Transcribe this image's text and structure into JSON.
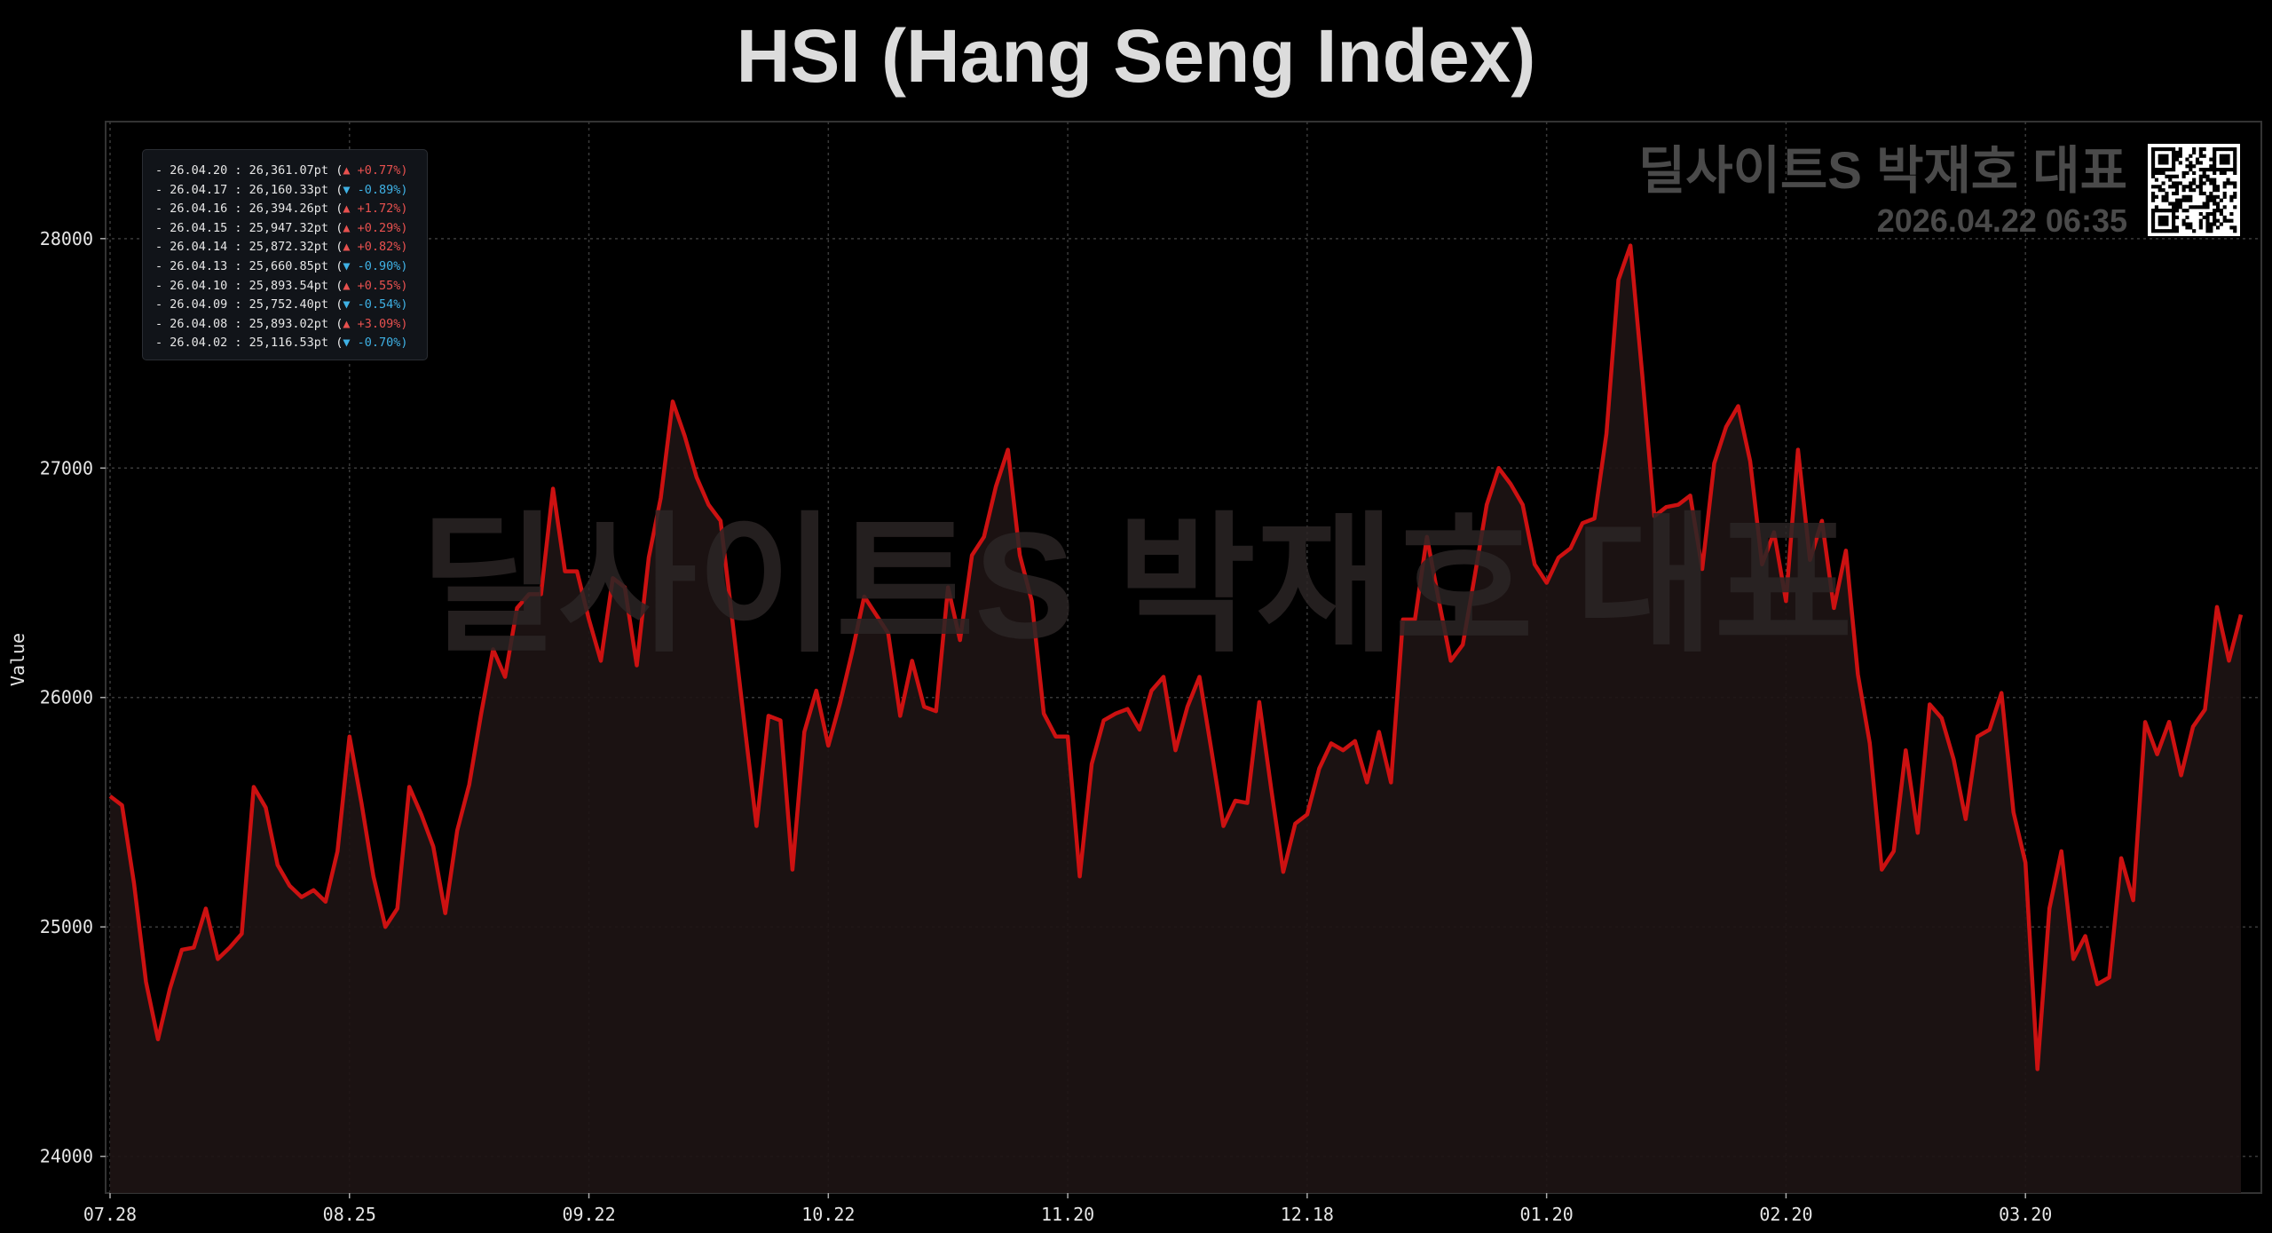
{
  "chart_data": {
    "type": "area",
    "title": "HSI (Hang Seng Index)",
    "xlabel": "",
    "ylabel": "Value",
    "ylim": [
      23840,
      28510
    ],
    "y_ticks": [
      24000,
      25000,
      26000,
      27000,
      28000
    ],
    "x_ticks": [
      {
        "index": 0,
        "label": "07.28"
      },
      {
        "index": 20,
        "label": "08.25"
      },
      {
        "index": 40,
        "label": "09.22"
      },
      {
        "index": 60,
        "label": "10.22"
      },
      {
        "index": 80,
        "label": "11.20"
      },
      {
        "index": 100,
        "label": "12.18"
      },
      {
        "index": 120,
        "label": "01.20"
      },
      {
        "index": 140,
        "label": "02.20"
      },
      {
        "index": 160,
        "label": "03.20"
      }
    ],
    "grid": true,
    "line_color": "#cc1111",
    "fill_color": "#1e1414",
    "values": [
      25570,
      25530,
      25190,
      24760,
      24510,
      24730,
      24900,
      24910,
      25080,
      24860,
      24910,
      24970,
      25610,
      25520,
      25270,
      25180,
      25130,
      25160,
      25110,
      25330,
      25830,
      25540,
      25220,
      25000,
      25080,
      25610,
      25490,
      25350,
      25060,
      25420,
      25620,
      25930,
      26210,
      26090,
      26390,
      26450,
      26450,
      26910,
      26550,
      26550,
      26340,
      26160,
      26520,
      26480,
      26140,
      26610,
      26870,
      27290,
      27140,
      26960,
      26840,
      26770,
      26330,
      25880,
      25440,
      25920,
      25900,
      25250,
      25850,
      26030,
      25790,
      25980,
      26200,
      26440,
      26360,
      26280,
      25920,
      26160,
      25960,
      25940,
      26480,
      26250,
      26620,
      26700,
      26920,
      27080,
      26620,
      26420,
      25930,
      25830,
      25830,
      25220,
      25710,
      25900,
      25930,
      25950,
      25860,
      26030,
      26090,
      25770,
      25960,
      26090,
      25770,
      25440,
      25550,
      25540,
      25980,
      25600,
      25240,
      25450,
      25490,
      25690,
      25800,
      25770,
      25810,
      25630,
      25850,
      25630,
      26340,
      26340,
      26700,
      26420,
      26160,
      26230,
      26530,
      26840,
      27000,
      26930,
      26840,
      26580,
      26500,
      26610,
      26650,
      26760,
      26780,
      27150,
      27820,
      27970,
      27400,
      26790,
      26830,
      26840,
      26880,
      26560,
      27020,
      27180,
      27270,
      27030,
      26580,
      26720,
      26420,
      27080,
      26600,
      26770,
      26390,
      26640,
      26100,
      25800,
      25250,
      25330,
      25770,
      25410,
      25970,
      25910,
      25730,
      25470,
      25830,
      25860,
      26020,
      25500,
      25280,
      24380,
      25080,
      25330,
      24860,
      24960,
      24750,
      24780,
      25300,
      25116.53,
      25893.02,
      25752.4,
      25893.54,
      25660.85,
      25872.32,
      25947.32,
      26394.26,
      26160.33,
      26361.07
    ]
  },
  "legend": {
    "rows": [
      {
        "date": "26.04.20",
        "value": "26,361.07pt",
        "dir": "up",
        "change": "+0.77%"
      },
      {
        "date": "26.04.17",
        "value": "26,160.33pt",
        "dir": "down",
        "change": "-0.89%"
      },
      {
        "date": "26.04.16",
        "value": "26,394.26pt",
        "dir": "up",
        "change": "+1.72%"
      },
      {
        "date": "26.04.15",
        "value": "25,947.32pt",
        "dir": "up",
        "change": "+0.29%"
      },
      {
        "date": "26.04.14",
        "value": "25,872.32pt",
        "dir": "up",
        "change": "+0.82%"
      },
      {
        "date": "26.04.13",
        "value": "25,660.85pt",
        "dir": "down",
        "change": "-0.90%"
      },
      {
        "date": "26.04.10",
        "value": "25,893.54pt",
        "dir": "up",
        "change": "+0.55%"
      },
      {
        "date": "26.04.09",
        "value": "25,752.40pt",
        "dir": "down",
        "change": "-0.54%"
      },
      {
        "date": "26.04.08",
        "value": "25,893.02pt",
        "dir": "up",
        "change": "+3.09%"
      },
      {
        "date": "26.04.02",
        "value": "25,116.53pt",
        "dir": "down",
        "change": "-0.70%"
      }
    ],
    "up_color": "#e8514f",
    "down_color": "#3fb2e6"
  },
  "brand": {
    "name": "딜사이트S 박재호 대표",
    "timestamp": "2026.04.22 06:35",
    "qr_icon": "qr-code-icon"
  },
  "watermark": "딜사이트S 박재호 대표"
}
